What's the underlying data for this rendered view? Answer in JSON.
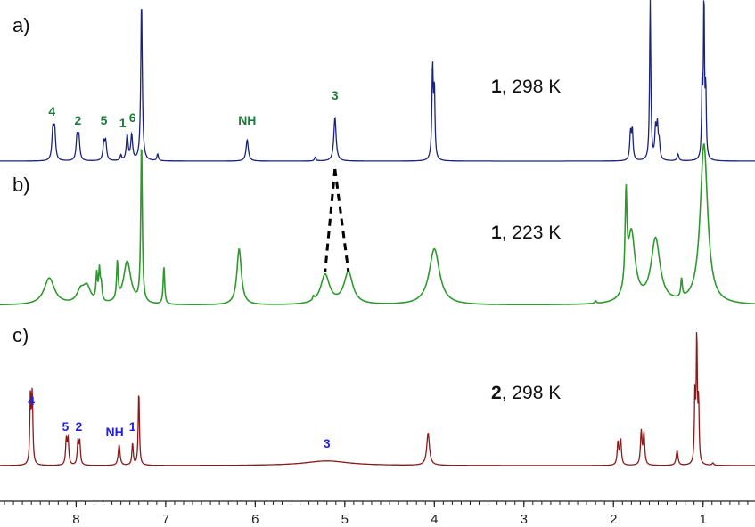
{
  "chart_data": {
    "type": "line",
    "x_axis": {
      "ticks": [
        8,
        7,
        6,
        5,
        4,
        3,
        2,
        1
      ],
      "reversed": true,
      "range": [
        8.85,
        0.42
      ]
    },
    "series": [
      {
        "panel": "a)",
        "compound": "1",
        "condition": ", 298 K",
        "color": "#1a237e",
        "peaks": [
          {
            "ppm": 8.26,
            "height": 0.22,
            "width": 0.012
          },
          {
            "ppm": 8.24,
            "height": 0.22,
            "width": 0.012
          },
          {
            "ppm": 7.99,
            "height": 0.17,
            "width": 0.012
          },
          {
            "ppm": 7.97,
            "height": 0.17,
            "width": 0.012
          },
          {
            "ppm": 7.69,
            "height": 0.13,
            "width": 0.012
          },
          {
            "ppm": 7.67,
            "height": 0.13,
            "width": 0.012
          },
          {
            "ppm": 7.5,
            "height": 0.04,
            "width": 0.01
          },
          {
            "ppm": 7.43,
            "height": 0.19,
            "width": 0.012
          },
          {
            "ppm": 7.38,
            "height": 0.19,
            "width": 0.012
          },
          {
            "ppm": 7.27,
            "height": 1.2,
            "width": 0.01
          },
          {
            "ppm": 7.09,
            "height": 0.05,
            "width": 0.01
          },
          {
            "ppm": 6.09,
            "height": 0.16,
            "width": 0.015
          },
          {
            "ppm": 5.33,
            "height": 0.03,
            "width": 0.01
          },
          {
            "ppm": 5.11,
            "height": 0.33,
            "width": 0.015
          },
          {
            "ppm": 4.02,
            "height": 0.5,
            "width": 0.008
          },
          {
            "ppm": 4.0,
            "height": 0.5,
            "width": 0.008
          },
          {
            "ppm": 4.02,
            "height": 0.2,
            "width": 0.012
          },
          {
            "ppm": 1.81,
            "height": 0.2,
            "width": 0.01
          },
          {
            "ppm": 1.79,
            "height": 0.22,
            "width": 0.01
          },
          {
            "ppm": 1.59,
            "height": 1.2,
            "width": 0.008
          },
          {
            "ppm": 1.53,
            "height": 0.22,
            "width": 0.01
          },
          {
            "ppm": 1.51,
            "height": 0.24,
            "width": 0.01
          },
          {
            "ppm": 1.49,
            "height": 0.12,
            "width": 0.01
          },
          {
            "ppm": 1.28,
            "height": 0.05,
            "width": 0.012
          },
          {
            "ppm": 1.01,
            "height": 0.55,
            "width": 0.007
          },
          {
            "ppm": 0.99,
            "height": 1.2,
            "width": 0.007
          },
          {
            "ppm": 0.97,
            "height": 0.5,
            "width": 0.007
          }
        ],
        "labels": [
          {
            "text": "4",
            "ppm": 8.27
          },
          {
            "text": "2",
            "ppm": 7.98
          },
          {
            "text": "5",
            "ppm": 7.69
          },
          {
            "text": "1",
            "ppm": 7.48
          },
          {
            "text": "6",
            "ppm": 7.37
          },
          {
            "text": "NH",
            "ppm": 6.09
          },
          {
            "text": "3",
            "ppm": 5.11
          }
        ],
        "label_color": "#1e7a3c"
      },
      {
        "panel": "b)",
        "compound": "1",
        "condition": ", 223 K",
        "color": "#2e9a2e",
        "peaks": [
          {
            "ppm": 8.3,
            "height": 0.2,
            "width": 0.07
          },
          {
            "ppm": 7.95,
            "height": 0.09,
            "width": 0.05
          },
          {
            "ppm": 7.88,
            "height": 0.12,
            "width": 0.05
          },
          {
            "ppm": 7.77,
            "height": 0.2,
            "width": 0.01
          },
          {
            "ppm": 7.74,
            "height": 0.23,
            "width": 0.01
          },
          {
            "ppm": 7.72,
            "height": 0.12,
            "width": 0.01
          },
          {
            "ppm": 7.54,
            "height": 0.28,
            "width": 0.01
          },
          {
            "ppm": 7.43,
            "height": 0.32,
            "width": 0.05
          },
          {
            "ppm": 7.27,
            "height": 1.2,
            "width": 0.01
          },
          {
            "ppm": 7.02,
            "height": 0.28,
            "width": 0.01
          },
          {
            "ppm": 6.18,
            "height": 0.42,
            "width": 0.03
          },
          {
            "ppm": 5.35,
            "height": 0.03,
            "width": 0.01
          },
          {
            "ppm": 5.22,
            "height": 0.22,
            "width": 0.06
          },
          {
            "ppm": 4.96,
            "height": 0.24,
            "width": 0.06
          },
          {
            "ppm": 4.0,
            "height": 0.42,
            "width": 0.07
          },
          {
            "ppm": 2.2,
            "height": 0.02,
            "width": 0.01
          },
          {
            "ppm": 1.86,
            "height": 0.68,
            "width": 0.012
          },
          {
            "ppm": 1.8,
            "height": 0.52,
            "width": 0.05
          },
          {
            "ppm": 1.53,
            "height": 0.48,
            "width": 0.06
          },
          {
            "ppm": 1.24,
            "height": 0.14,
            "width": 0.01
          },
          {
            "ppm": 0.99,
            "height": 1.2,
            "width": 0.05
          }
        ],
        "labels": [],
        "label_color": "#1e7a3c"
      },
      {
        "panel": "c)",
        "compound": "2",
        "condition": ", 298 K",
        "color": "#8b1a1a",
        "peaks": [
          {
            "ppm": 8.51,
            "height": 0.6,
            "width": 0.008
          },
          {
            "ppm": 8.49,
            "height": 0.6,
            "width": 0.008
          },
          {
            "ppm": 8.11,
            "height": 0.22,
            "width": 0.009
          },
          {
            "ppm": 8.09,
            "height": 0.22,
            "width": 0.009
          },
          {
            "ppm": 7.98,
            "height": 0.2,
            "width": 0.009
          },
          {
            "ppm": 7.96,
            "height": 0.2,
            "width": 0.009
          },
          {
            "ppm": 7.52,
            "height": 0.18,
            "width": 0.012
          },
          {
            "ppm": 7.37,
            "height": 0.19,
            "width": 0.009
          },
          {
            "ppm": 7.3,
            "height": 0.65,
            "width": 0.008
          },
          {
            "ppm": 5.2,
            "height": 0.04,
            "width": 0.3
          },
          {
            "ppm": 4.07,
            "height": 0.28,
            "width": 0.018
          },
          {
            "ppm": 1.95,
            "height": 0.2,
            "width": 0.01
          },
          {
            "ppm": 1.92,
            "height": 0.22,
            "width": 0.01
          },
          {
            "ppm": 1.69,
            "height": 0.29,
            "width": 0.01
          },
          {
            "ppm": 1.66,
            "height": 0.27,
            "width": 0.01
          },
          {
            "ppm": 1.29,
            "height": 0.13,
            "width": 0.012
          },
          {
            "ppm": 1.09,
            "height": 0.62,
            "width": 0.007
          },
          {
            "ppm": 1.07,
            "height": 1.1,
            "width": 0.007
          },
          {
            "ppm": 1.05,
            "height": 0.52,
            "width": 0.007
          },
          {
            "ppm": 0.89,
            "height": 0.02,
            "width": 0.01
          }
        ],
        "labels": [
          {
            "text": "4",
            "ppm": 8.5
          },
          {
            "text": "5",
            "ppm": 8.12
          },
          {
            "text": "2",
            "ppm": 7.97
          },
          {
            "text": "NH",
            "ppm": 7.57
          },
          {
            "text": "1",
            "ppm": 7.37
          },
          {
            "text": "3",
            "ppm": 5.2
          }
        ],
        "label_color": "#2222dd"
      }
    ]
  }
}
